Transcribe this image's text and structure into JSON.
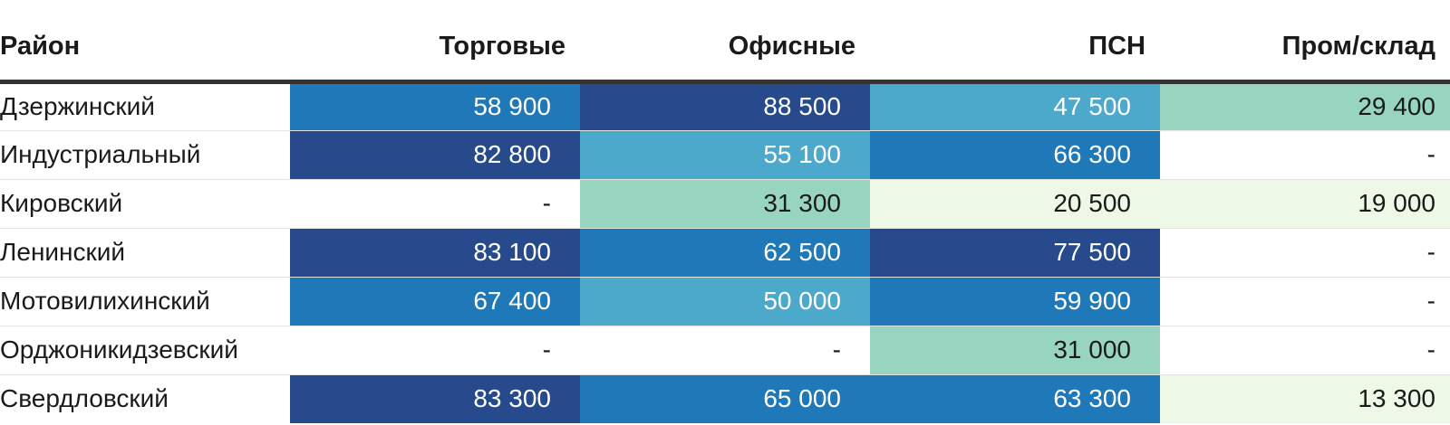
{
  "chart_data": {
    "type": "table",
    "columns": [
      "Район",
      "Торговые",
      "Офисные",
      "ПСН",
      "Пром/склад"
    ],
    "rows": [
      {
        "district": "Дзержинский",
        "cells": [
          "58 900",
          "88 500",
          "47 500",
          "29 400"
        ],
        "values": [
          58900,
          88500,
          47500,
          29400
        ]
      },
      {
        "district": "Индустриальный",
        "cells": [
          "82 800",
          "55 100",
          "66 300",
          "-"
        ],
        "values": [
          82800,
          55100,
          66300,
          null
        ]
      },
      {
        "district": "Кировский",
        "cells": [
          "-",
          "31 300",
          "20 500",
          "19 000"
        ],
        "values": [
          null,
          31300,
          20500,
          19000
        ]
      },
      {
        "district": "Ленинский",
        "cells": [
          "83 100",
          "62 500",
          "77 500",
          "-"
        ],
        "values": [
          83100,
          62500,
          77500,
          null
        ]
      },
      {
        "district": "Мотовилихинский",
        "cells": [
          "67 400",
          "50 000",
          "59 900",
          "-"
        ],
        "values": [
          67400,
          50000,
          59900,
          null
        ]
      },
      {
        "district": "Орджоникидзевский",
        "cells": [
          "-",
          "-",
          "31 000",
          "-"
        ],
        "values": [
          null,
          null,
          31000,
          null
        ]
      },
      {
        "district": "Свердловский",
        "cells": [
          "83 300",
          "65 000",
          "63 300",
          "13 300"
        ],
        "values": [
          83300,
          65000,
          63300,
          13300
        ]
      }
    ],
    "color_scale": {
      "empty": "#ffffff",
      "steps": [
        {
          "max": 25000,
          "bg": "#eef8e6",
          "text": "#1a1a1a"
        },
        {
          "max": 40000,
          "bg": "#97d5c0",
          "text": "#1a1a1a"
        },
        {
          "max": 56000,
          "bg": "#4ca9cc",
          "text": "#ffffff"
        },
        {
          "max": 70000,
          "bg": "#1f78b7",
          "text": "#ffffff"
        },
        {
          "max": 1000000,
          "bg": "#264a8c",
          "text": "#ffffff"
        }
      ]
    }
  }
}
